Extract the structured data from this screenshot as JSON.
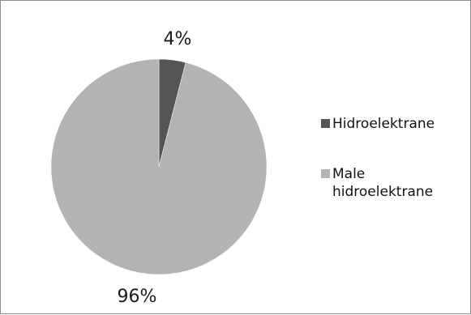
{
  "chart_data": {
    "type": "pie",
    "slices": [
      {
        "label": "Hidroelektrane",
        "value": 4,
        "value_label": "4%",
        "color": "#555555"
      },
      {
        "label": "Male hidroelektrane",
        "value": 96,
        "value_label": "96%",
        "color": "#b3b3b3"
      }
    ],
    "legend": {
      "placement": "right",
      "entries": [
        {
          "lines": [
            "Hidroelektrane"
          ],
          "color": "#555555"
        },
        {
          "lines": [
            "Male",
            "hidroelektrane"
          ],
          "color": "#b3b3b3"
        }
      ]
    }
  }
}
